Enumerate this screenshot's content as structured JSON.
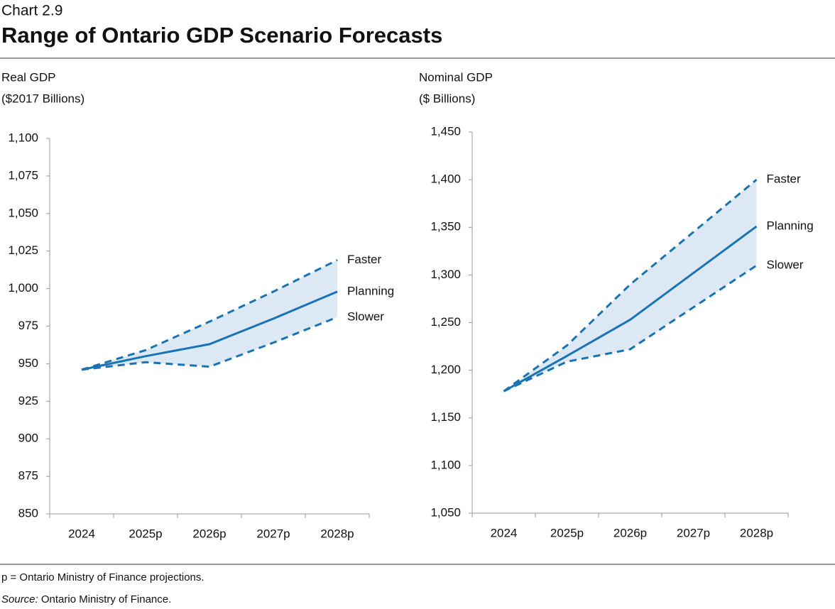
{
  "header": {
    "label": "Chart 2.9",
    "title": "Range of Ontario GDP Scenario Forecasts"
  },
  "chart_data": [
    {
      "type": "line",
      "y_label": [
        "Real GDP",
        "($2017 Billions)"
      ],
      "categories": [
        "2024",
        "2025p",
        "2026p",
        "2027p",
        "2028p"
      ],
      "ylim": [
        850,
        1100
      ],
      "yticks": [
        850,
        875,
        900,
        925,
        950,
        975,
        {
          "value": 1000,
          "label": "1,000"
        },
        {
          "value": 1025,
          "label": "1,025"
        },
        {
          "value": 1050,
          "label": "1,050"
        },
        {
          "value": 1075,
          "label": "1,075"
        },
        {
          "value": 1100,
          "label": "1,100"
        }
      ],
      "band_color": "#dce9f5",
      "series": [
        {
          "name": "Faster",
          "color": "#1a74b3",
          "line_style": "dashed",
          "values": [
            946,
            959,
            978,
            998,
            1019
          ]
        },
        {
          "name": "Planning",
          "color": "#1a74b3",
          "line_style": "solid",
          "values": [
            946,
            955,
            963,
            980,
            998
          ]
        },
        {
          "name": "Slower",
          "color": "#1a74b3",
          "line_style": "dashed",
          "values": [
            946,
            951,
            948,
            964,
            981
          ]
        }
      ]
    },
    {
      "type": "line",
      "y_label": [
        "Nominal GDP",
        "($ Billions)"
      ],
      "categories": [
        "2024",
        "2025p",
        "2026p",
        "2027p",
        "2028p"
      ],
      "ylim": [
        1050,
        1450
      ],
      "yticks": [
        {
          "value": 1050,
          "label": "1,050"
        },
        {
          "value": 1100,
          "label": "1,100"
        },
        {
          "value": 1150,
          "label": "1,150"
        },
        {
          "value": 1200,
          "label": "1,200"
        },
        {
          "value": 1250,
          "label": "1,250"
        },
        {
          "value": 1300,
          "label": "1,300"
        },
        {
          "value": 1350,
          "label": "1,350"
        },
        {
          "value": 1400,
          "label": "1,400"
        },
        {
          "value": 1450,
          "label": "1,450"
        }
      ],
      "band_color": "#dce9f5",
      "series": [
        {
          "name": "Faster",
          "color": "#1a74b3",
          "line_style": "dashed",
          "values": [
            1178,
            1226,
            1290,
            1345,
            1400
          ]
        },
        {
          "name": "Planning",
          "color": "#1a74b3",
          "line_style": "solid",
          "values": [
            1178,
            1215,
            1253,
            1302,
            1351
          ]
        },
        {
          "name": "Slower",
          "color": "#1a74b3",
          "line_style": "dashed",
          "values": [
            1178,
            1209,
            1222,
            1266,
            1310
          ]
        }
      ]
    }
  ],
  "notes": {
    "footnote": "p = Ontario Ministry of Finance projections.",
    "source_label": "Source:",
    "source_text": " Ontario Ministry of Finance."
  }
}
